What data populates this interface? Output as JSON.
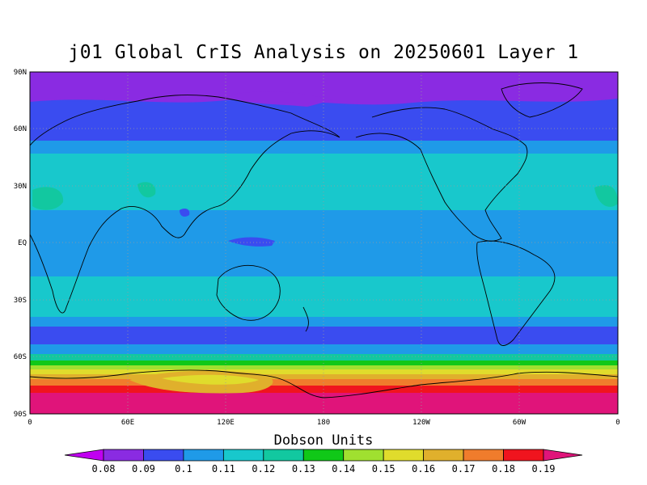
{
  "title": "j01 Global CrIS Analysis on 20250601 Layer 1",
  "lat_labels": [
    "90N",
    "60N",
    "30N",
    "EQ",
    "30S",
    "60S",
    "90S"
  ],
  "lon_labels": [
    "0",
    "60E",
    "120E",
    "180",
    "120W",
    "60W",
    "0"
  ],
  "colorbar": {
    "title": "Dobson Units",
    "ticks": [
      "0.08",
      "0.09",
      "0.1",
      "0.11",
      "0.12",
      "0.13",
      "0.14",
      "0.15",
      "0.16",
      "0.17",
      "0.18",
      "0.19"
    ],
    "colors": [
      "#c000f0",
      "#8a2be2",
      "#3a4cf0",
      "#1f9ae8",
      "#18c8cc",
      "#12c8a0",
      "#10c818",
      "#a0e030",
      "#e0dc2c",
      "#e0b02c",
      "#f07c2c",
      "#f0141e",
      "#e0147a"
    ]
  },
  "chart_data": {
    "type": "heatmap",
    "title": "j01 Global CrIS Analysis on 20250601 Layer 1",
    "xlabel": "",
    "ylabel": "",
    "x_ticks": [
      "0",
      "60E",
      "120E",
      "180",
      "120W",
      "60W",
      "0"
    ],
    "y_ticks": [
      "90N",
      "60N",
      "30N",
      "EQ",
      "30S",
      "60S",
      "90S"
    ],
    "colorbar_label": "Dobson Units",
    "colorbar_levels": [
      0.08,
      0.09,
      0.1,
      0.11,
      0.12,
      0.13,
      0.14,
      0.15,
      0.16,
      0.17,
      0.18,
      0.19
    ],
    "zonal_bands": [
      {
        "lat_range": [
          75,
          90
        ],
        "value": 0.085
      },
      {
        "lat_range": [
          60,
          75
        ],
        "value": 0.095
      },
      {
        "lat_range": [
          45,
          60
        ],
        "value": 0.105
      },
      {
        "lat_range": [
          15,
          45
        ],
        "value": 0.115
      },
      {
        "lat_range": [
          -25,
          15
        ],
        "value": 0.105
      },
      {
        "lat_range": [
          -40,
          -25
        ],
        "value": 0.115
      },
      {
        "lat_range": [
          -50,
          -40
        ],
        "value": 0.105
      },
      {
        "lat_range": [
          -57,
          -50
        ],
        "value": 0.095
      },
      {
        "lat_range": [
          -62,
          -57
        ],
        "value": 0.125
      },
      {
        "lat_range": [
          -65,
          -62
        ],
        "value": 0.135
      },
      {
        "lat_range": [
          -68,
          -65
        ],
        "value": 0.155
      },
      {
        "lat_range": [
          -71,
          -68
        ],
        "value": 0.165
      },
      {
        "lat_range": [
          -74,
          -71
        ],
        "value": 0.175
      },
      {
        "lat_range": [
          -77,
          -74
        ],
        "value": 0.185
      },
      {
        "lat_range": [
          -90,
          -77
        ],
        "value": 0.195
      }
    ],
    "grid": true,
    "legend": "bottom"
  }
}
